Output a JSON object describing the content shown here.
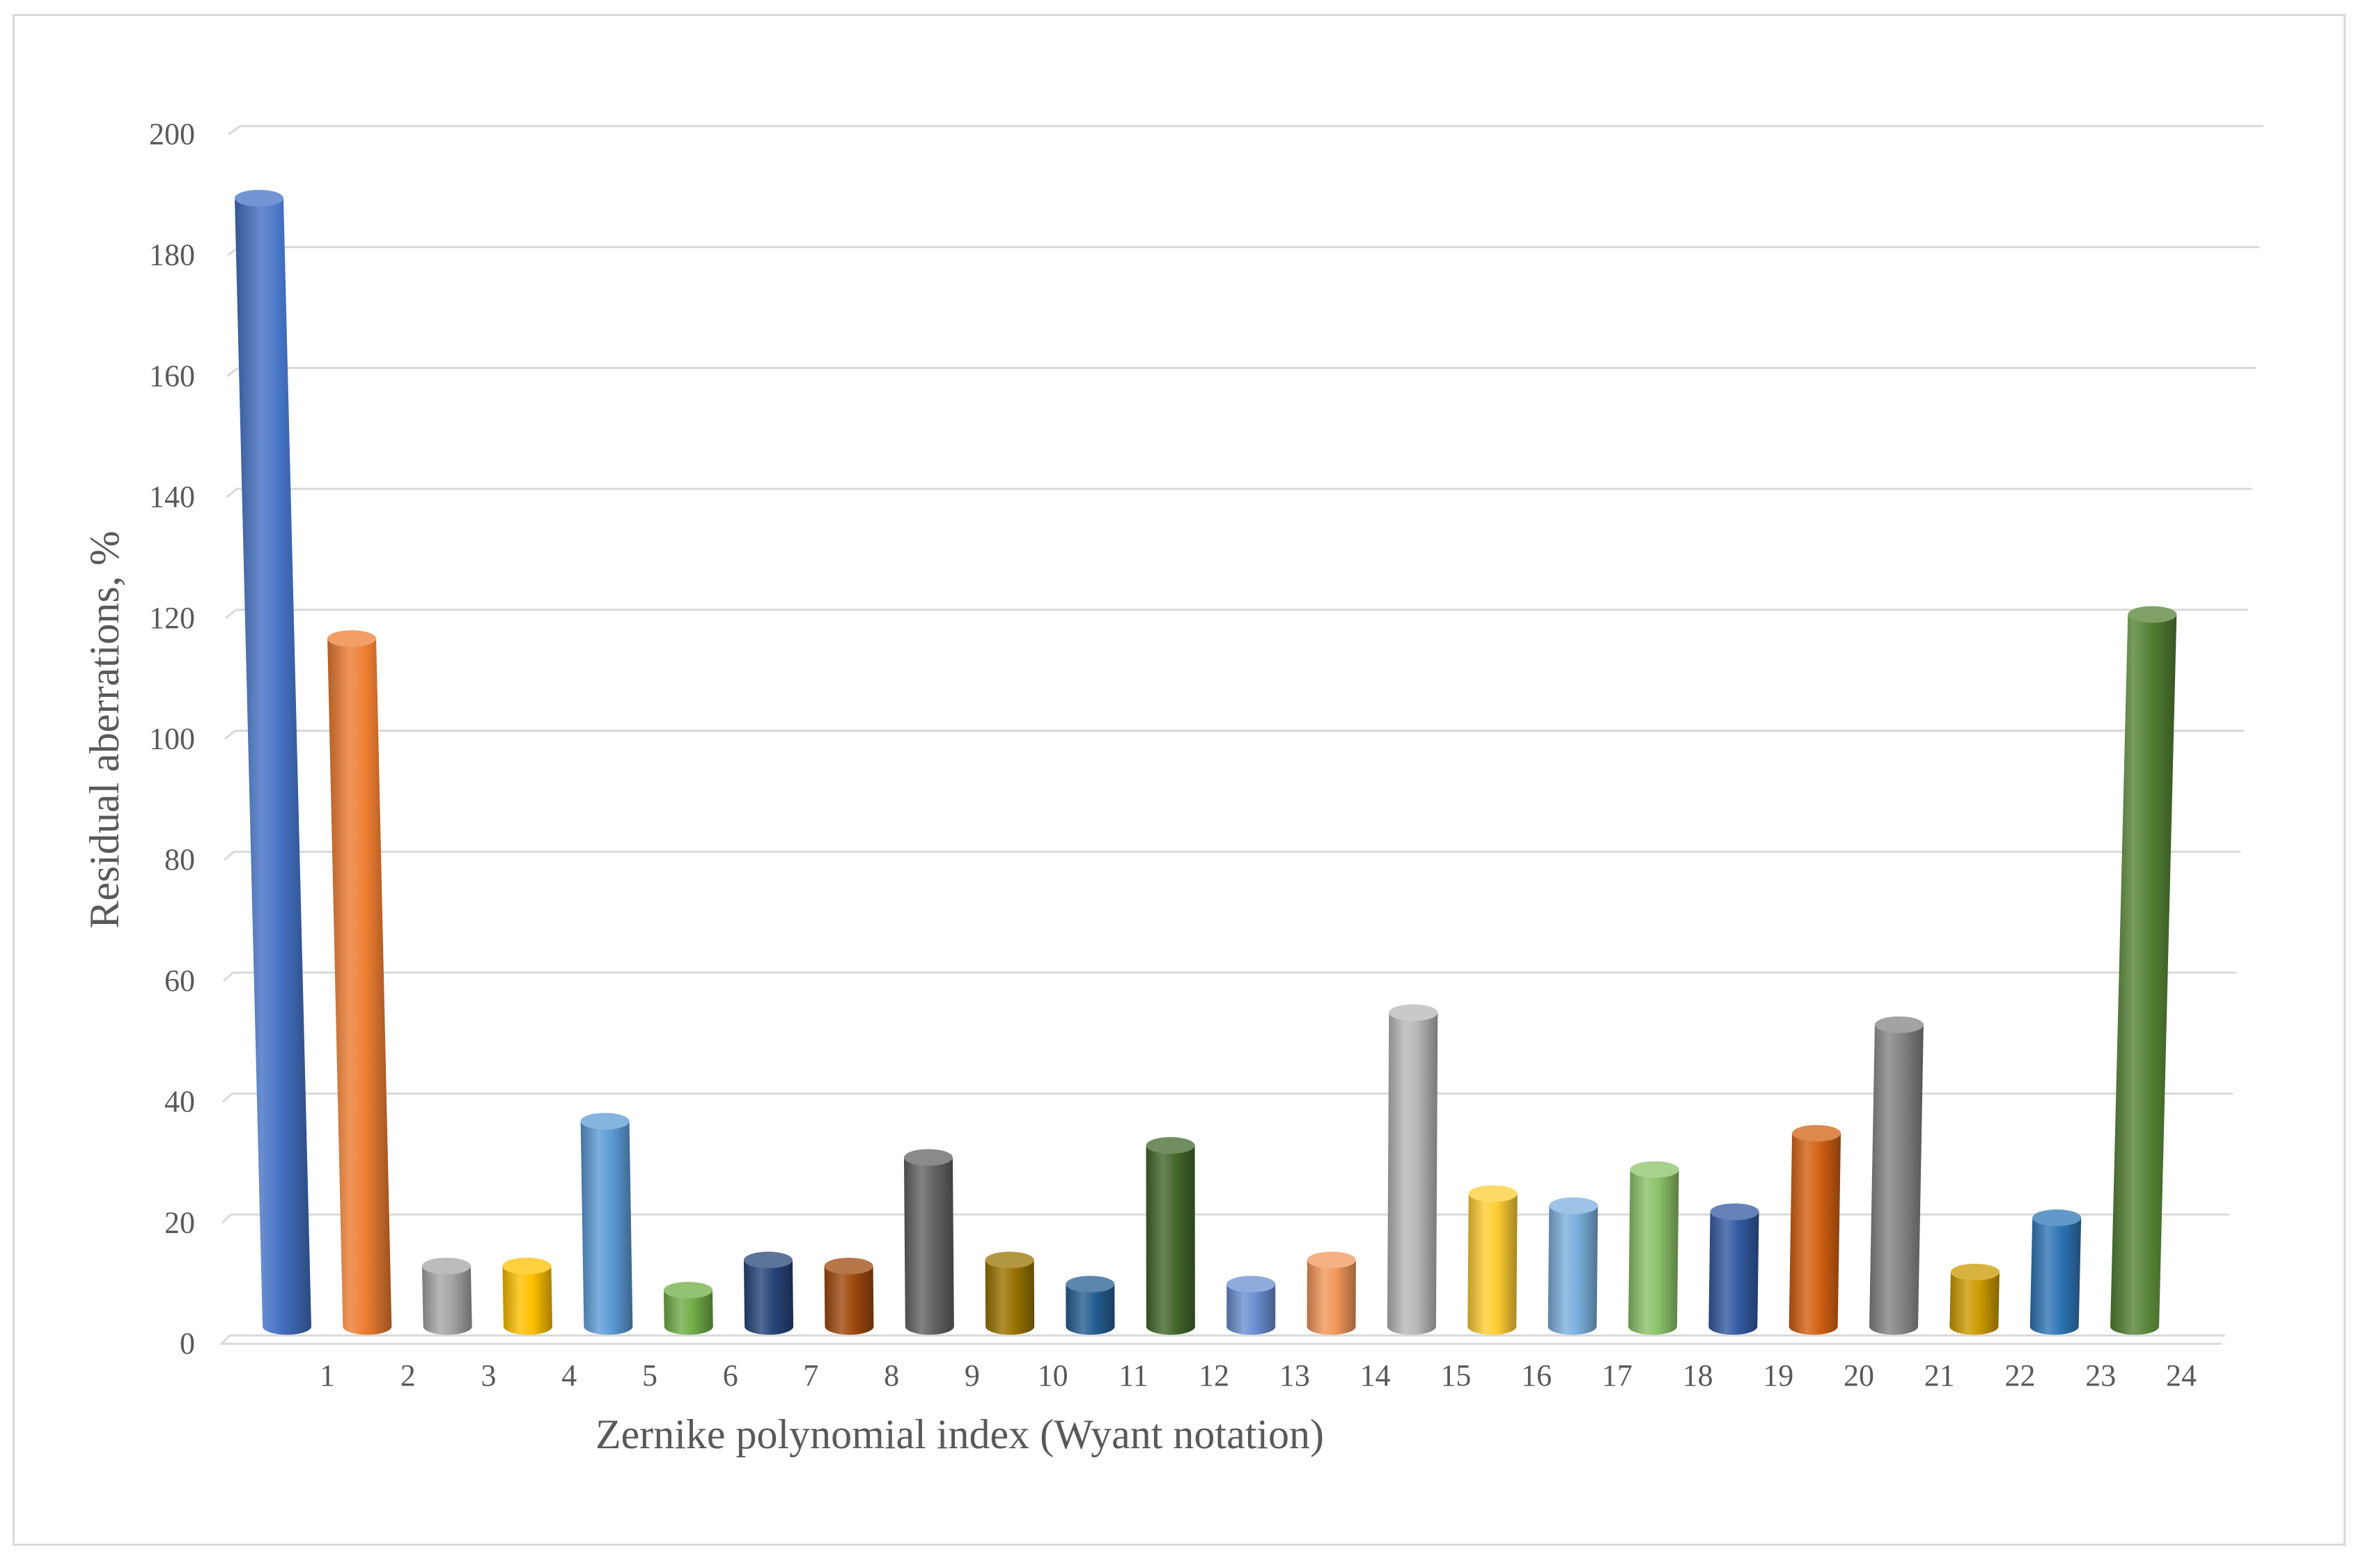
{
  "chart_data": {
    "type": "bar",
    "style": "3d-cylinder",
    "xlabel": "Zernike polynomial index (Wyant notation)",
    "ylabel": "Residual aberrations, %",
    "ylim": [
      0,
      200
    ],
    "yticks": [
      0,
      20,
      40,
      60,
      80,
      100,
      120,
      140,
      160,
      180,
      200
    ],
    "grid": true,
    "legend": "none",
    "categories": [
      "1",
      "2",
      "3",
      "4",
      "5",
      "6",
      "7",
      "8",
      "9",
      "10",
      "11",
      "12",
      "13",
      "14",
      "15",
      "16",
      "17",
      "18",
      "19",
      "20",
      "21",
      "22",
      "23",
      "24"
    ],
    "values": [
      187,
      114,
      10,
      10,
      34,
      6,
      11,
      10,
      28,
      11,
      7,
      30,
      7,
      11,
      52,
      22,
      20,
      26,
      19,
      32,
      50,
      9,
      18,
      118
    ],
    "colors": [
      "#4472c4",
      "#ed7d31",
      "#a5a5a5",
      "#ffc000",
      "#5b9bd5",
      "#70ad47",
      "#264478",
      "#9e480e",
      "#636363",
      "#997300",
      "#255e91",
      "#43682b",
      "#698ed0",
      "#f1975a",
      "#b7b7b7",
      "#ffcd33",
      "#7cafdd",
      "#8cc168",
      "#335aa1",
      "#d26012",
      "#848484",
      "#cc9a00",
      "#2e75b6",
      "#548235"
    ]
  }
}
